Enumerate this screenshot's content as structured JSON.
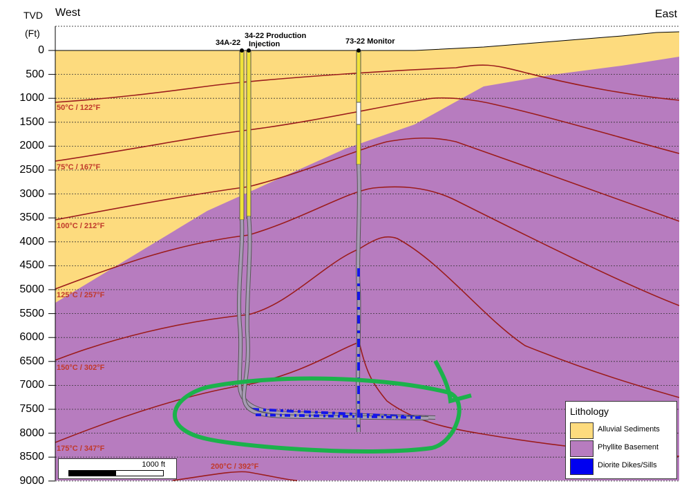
{
  "axis": {
    "title_line1": "TVD",
    "title_line2": "(Ft)",
    "ticks": [
      "0",
      "500",
      "1000",
      "1500",
      "2000",
      "2500",
      "3000",
      "3500",
      "4000",
      "4500",
      "5000",
      "5500",
      "6000",
      "6500",
      "7000",
      "7500",
      "8000",
      "8500",
      "9000"
    ]
  },
  "directions": {
    "left": "West",
    "right": "East"
  },
  "wells": {
    "well_1": "34A-22",
    "well_1_sub": "Injection",
    "well_2": "34-22 Production",
    "well_3": "73-22 Monitor"
  },
  "isotherms": [
    "50°C / 122°F",
    "75°C / 167°F",
    "100°C / 212°F",
    "125°C / 257°F",
    "150°C / 302°F",
    "175°C / 347°F",
    "200°C / 392°F"
  ],
  "legend": {
    "title": "Lithology",
    "items": [
      {
        "label": "Alluvial Sediments",
        "color": "#fddb7e"
      },
      {
        "label": "Phyllite Basement",
        "color": "#b77cbf"
      },
      {
        "label": "Diorite Dikes/Sills",
        "color": "#0000f0"
      }
    ]
  },
  "scale_bar": {
    "label": "1000 ft"
  },
  "colors": {
    "sediments": "#fddb7e",
    "basement": "#b77cbf",
    "isotherm": "#9b1c1c",
    "annotation": "#1bb24b",
    "well_yellow": "#f0e23a"
  }
}
